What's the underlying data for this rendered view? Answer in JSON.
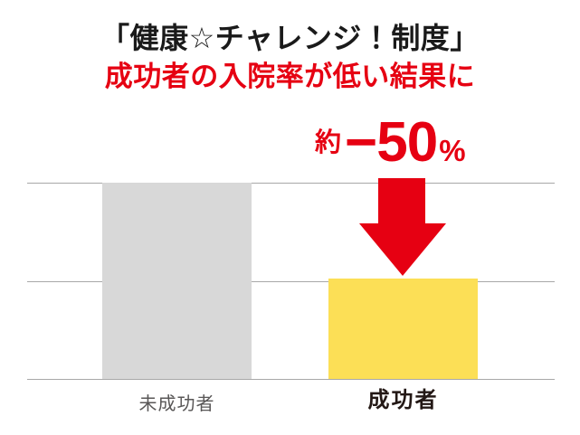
{
  "header": {
    "title": "「健康☆チャレンジ！制度」",
    "subtitle": "成功者の入院率が低い結果に"
  },
  "annotation": {
    "prefix": "約",
    "value": "−50",
    "unit": "%"
  },
  "colors": {
    "accent_red": "#e60012",
    "bar_gray": "#d8d8d8",
    "bar_yellow": "#fcdf56",
    "gridline": "#a8a8a8",
    "label_gray": "#595757",
    "label_dark": "#231815",
    "title_black": "#1a1a1a",
    "background": "#ffffff"
  },
  "chart_data": {
    "type": "bar",
    "title": "「健康☆チャレンジ！制度」",
    "subtitle": "成功者の入院率が低い結果に",
    "categories": [
      "未成功者",
      "成功者"
    ],
    "values": [
      100,
      51
    ],
    "bar_colors": [
      "#d8d8d8",
      "#fcdf56"
    ],
    "annotation": "約−50%",
    "annotation_target": "成功者",
    "xlabel": "",
    "ylabel": "",
    "ylim": [
      0,
      100
    ],
    "grid": true,
    "gridlines_y": [
      0,
      50,
      100
    ],
    "value_axis_labels_visible": false,
    "legend": "none"
  }
}
